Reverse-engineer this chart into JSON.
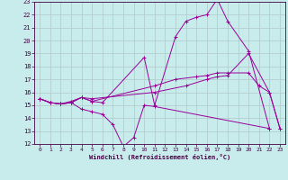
{
  "background_color": "#c8ecec",
  "line_color": "#990099",
  "grid_color": "#b0c8c8",
  "xlabel": "Windchill (Refroidissement éolien,°C)",
  "xlim": [
    -0.5,
    23.5
  ],
  "ylim": [
    12,
    23
  ],
  "yticks": [
    12,
    13,
    14,
    15,
    16,
    17,
    18,
    19,
    20,
    21,
    22,
    23
  ],
  "xticks": [
    0,
    1,
    2,
    3,
    4,
    5,
    6,
    7,
    8,
    9,
    10,
    11,
    12,
    13,
    14,
    15,
    16,
    17,
    18,
    19,
    20,
    21,
    22,
    23
  ],
  "lines": [
    {
      "x": [
        0,
        1,
        2,
        3,
        4,
        5,
        6,
        10,
        11,
        13,
        14,
        15,
        16,
        17,
        18,
        20,
        22
      ],
      "y": [
        15.5,
        15.2,
        15.1,
        15.2,
        15.6,
        15.3,
        15.2,
        18.7,
        15.0,
        20.3,
        21.5,
        21.8,
        22.0,
        23.2,
        21.5,
        19.2,
        13.2
      ]
    },
    {
      "x": [
        0,
        1,
        2,
        3,
        4,
        5,
        11,
        13,
        15,
        16,
        17,
        18,
        20,
        21,
        22,
        23
      ],
      "y": [
        15.5,
        15.2,
        15.1,
        15.2,
        15.6,
        15.3,
        16.5,
        17.0,
        17.2,
        17.3,
        17.5,
        17.5,
        17.5,
        16.5,
        16.0,
        13.2
      ]
    },
    {
      "x": [
        0,
        1,
        2,
        3,
        4,
        5,
        6,
        7,
        8,
        9,
        10,
        11,
        22
      ],
      "y": [
        15.5,
        15.2,
        15.1,
        15.2,
        14.7,
        14.5,
        14.3,
        13.5,
        11.8,
        12.5,
        15.0,
        14.9,
        13.2
      ]
    },
    {
      "x": [
        0,
        1,
        2,
        3,
        4,
        5,
        11,
        14,
        16,
        17,
        18,
        20,
        22,
        23
      ],
      "y": [
        15.5,
        15.2,
        15.1,
        15.3,
        15.6,
        15.5,
        16.0,
        16.5,
        17.0,
        17.2,
        17.3,
        19.0,
        16.0,
        13.2
      ]
    }
  ]
}
